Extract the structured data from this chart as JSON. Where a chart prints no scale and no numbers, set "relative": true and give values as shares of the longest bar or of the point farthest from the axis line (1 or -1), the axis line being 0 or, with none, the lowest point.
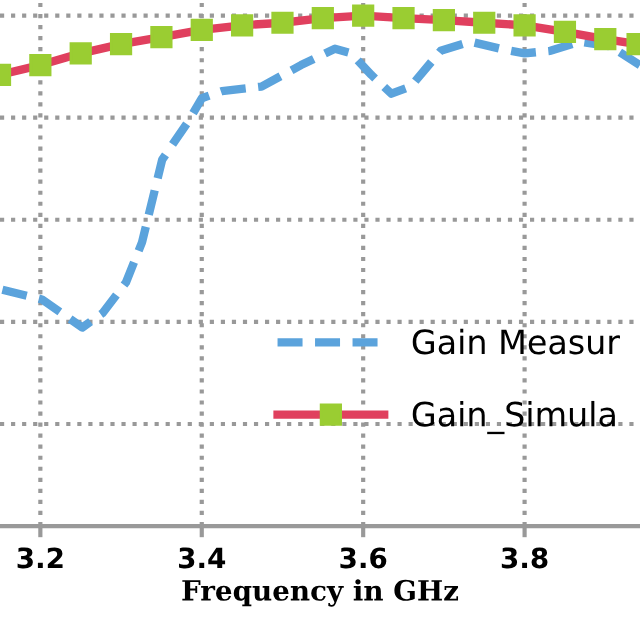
{
  "chart_data": {
    "type": "line",
    "xlabel": "Frequency in GHz",
    "relative": true,
    "xlim": [
      3.15,
      3.943
    ],
    "xticks": [
      3.2,
      3.4,
      3.6,
      3.8
    ],
    "grid": true,
    "legend": "right",
    "series": [
      {
        "name": "Gain Measur",
        "color": "#5ba3dc",
        "line_style": "dashed",
        "marker": "none",
        "x": [
          3.153,
          3.202,
          3.252,
          3.277,
          3.306,
          3.326,
          3.351,
          3.383,
          3.4,
          3.425,
          3.474,
          3.523,
          3.565,
          3.585,
          3.61,
          3.635,
          3.659,
          3.696,
          3.733,
          3.77,
          3.8,
          3.832,
          3.869,
          3.906,
          3.943
        ],
        "values": [
          0.463,
          0.444,
          0.389,
          0.417,
          0.477,
          0.556,
          0.718,
          0.792,
          0.838,
          0.852,
          0.861,
          0.903,
          0.935,
          0.926,
          0.884,
          0.847,
          0.861,
          0.931,
          0.949,
          0.935,
          0.926,
          0.931,
          0.949,
          0.94,
          0.903
        ]
      },
      {
        "name": "Gain_Simula",
        "color": "#e0405e",
        "line_style": "solid",
        "marker": "square",
        "x": [
          3.15,
          3.2,
          3.25,
          3.3,
          3.35,
          3.4,
          3.45,
          3.5,
          3.55,
          3.6,
          3.65,
          3.7,
          3.75,
          3.8,
          3.85,
          3.9,
          3.94
        ],
        "values": [
          0.884,
          0.903,
          0.926,
          0.944,
          0.958,
          0.972,
          0.981,
          0.986,
          0.995,
          1.0,
          0.995,
          0.991,
          0.986,
          0.981,
          0.968,
          0.954,
          0.944
        ]
      }
    ]
  }
}
